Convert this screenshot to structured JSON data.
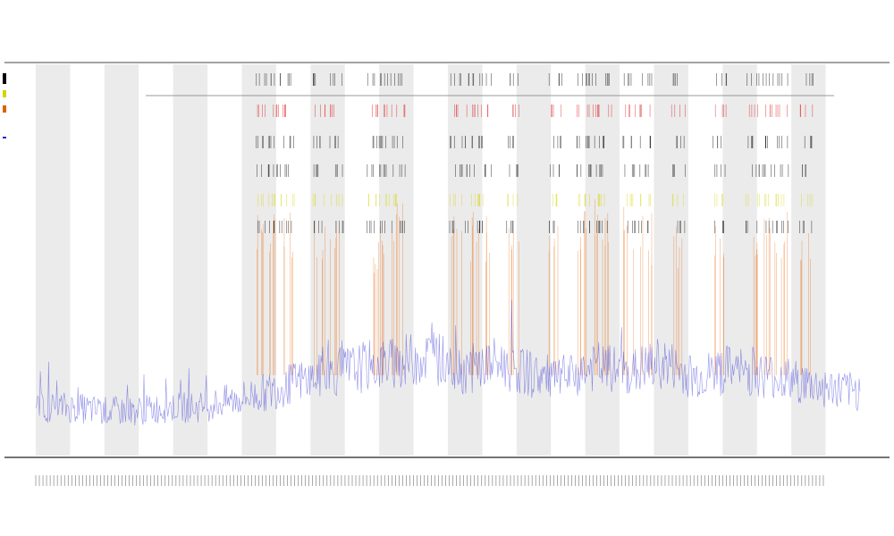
{
  "chart_data": {
    "type": "line",
    "title": "",
    "subtitle_lines": [
      "",
      ""
    ],
    "xlabel": "",
    "ylabel": "",
    "legend": {
      "placement": "top-left",
      "entries": [
        {
          "name": "",
          "color": "#000000"
        },
        {
          "name": "",
          "color": "#d4d400"
        },
        {
          "name": "",
          "color": "#e06000"
        },
        {
          "name": "",
          "color": "#2020dd"
        }
      ]
    },
    "x_range": [
      0,
      240
    ],
    "y_range": [
      0,
      1
    ],
    "grid": false,
    "band_count": 12,
    "colors": {
      "band": "#ebebeb",
      "signal": "#3a3ad8",
      "spike_orange": "#e8680a",
      "marker_yellow": "#d8d820",
      "marker_red": "#dd2222",
      "marker_black": "#111111",
      "axis": "#333333"
    },
    "series": [
      {
        "name": "",
        "role": "baseline-signal",
        "description_values": [
          0.13,
          0.13,
          0.12,
          0.12,
          0.13,
          0.13,
          0.15,
          0.17,
          0.2,
          0.22,
          0.24,
          0.25,
          0.27,
          0.23,
          0.25,
          0.22,
          0.2,
          0.24,
          0.22,
          0.25,
          0.21,
          0.23,
          0.22,
          0.2,
          0.18,
          0.17
        ]
      }
    ],
    "event_clusters": [
      {
        "x": 0.275,
        "level": 0.95
      },
      {
        "x": 0.29,
        "level": 0.95
      },
      {
        "x": 0.305,
        "level": 0.9
      },
      {
        "x": 0.345,
        "level": 0.8
      },
      {
        "x": 0.365,
        "level": 1.0
      },
      {
        "x": 0.41,
        "level": 0.7
      },
      {
        "x": 0.425,
        "level": 0.9
      },
      {
        "x": 0.44,
        "level": 0.95
      },
      {
        "x": 0.51,
        "level": 1.0
      },
      {
        "x": 0.53,
        "level": 0.85
      },
      {
        "x": 0.545,
        "level": 0.8
      },
      {
        "x": 0.58,
        "level": 0.9
      },
      {
        "x": 0.63,
        "level": 0.85
      },
      {
        "x": 0.665,
        "level": 1.0
      },
      {
        "x": 0.675,
        "level": 1.0
      },
      {
        "x": 0.69,
        "level": 0.95
      },
      {
        "x": 0.72,
        "level": 1.0
      },
      {
        "x": 0.74,
        "level": 0.8
      },
      {
        "x": 0.78,
        "level": 0.7
      },
      {
        "x": 0.83,
        "level": 0.75
      },
      {
        "x": 0.87,
        "level": 0.6
      },
      {
        "x": 0.89,
        "level": 0.95
      },
      {
        "x": 0.905,
        "level": 0.9
      },
      {
        "x": 0.935,
        "level": 0.6
      }
    ],
    "x_tick_count": 220
  }
}
